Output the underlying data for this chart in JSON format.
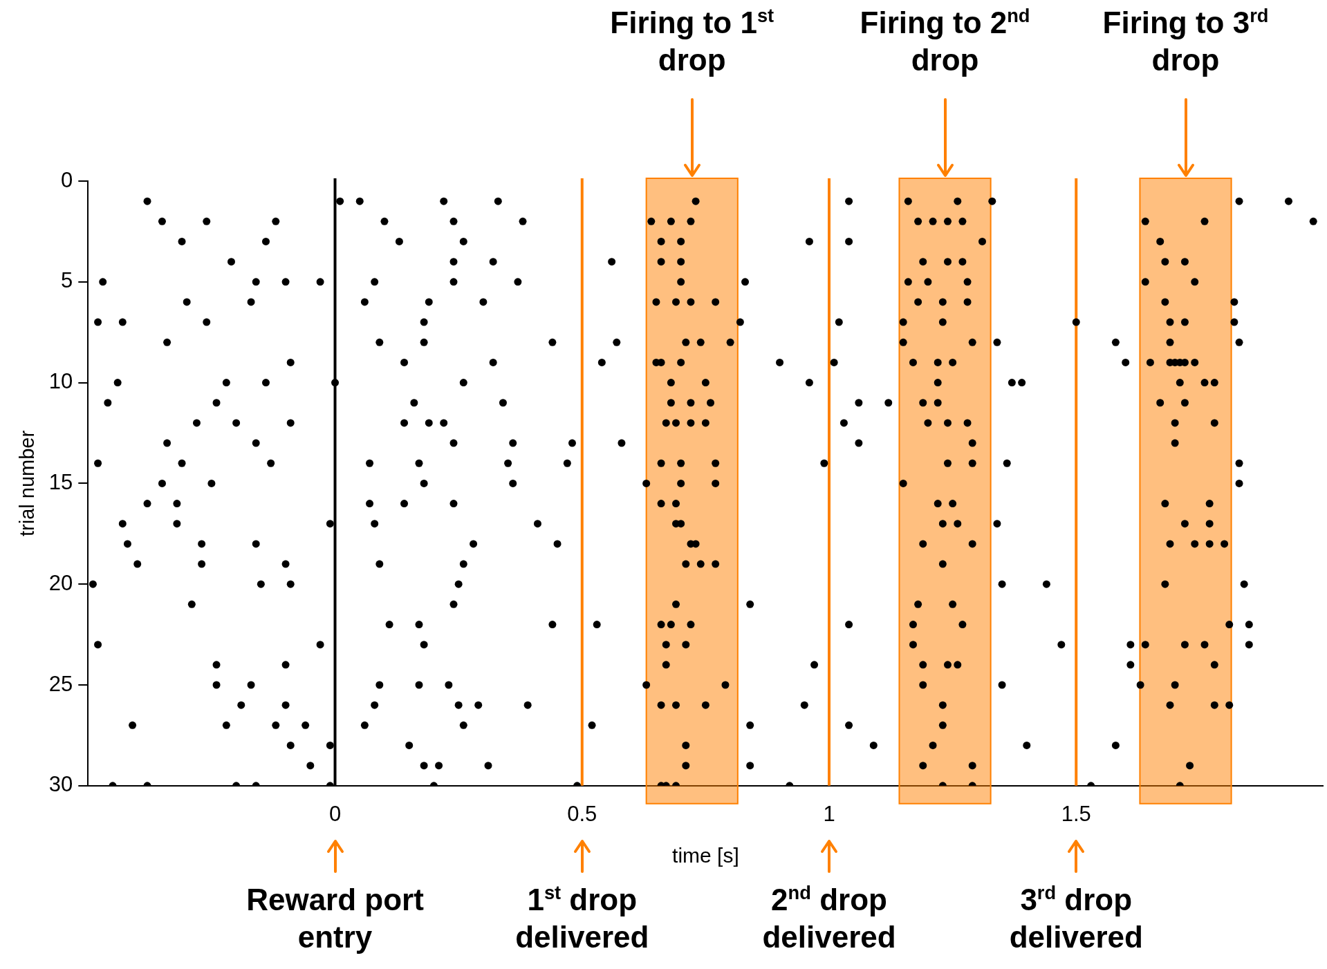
{
  "chart_data": {
    "type": "scatter",
    "xlabel": "time [s]",
    "ylabel": "trial number",
    "marker": "circle",
    "xlim": [
      -0.5,
      2
    ],
    "xticks": [
      0,
      0.5,
      1,
      1.5
    ],
    "ylim": [
      30,
      0
    ],
    "yticks": [
      0,
      5,
      10,
      15,
      20,
      25,
      30
    ],
    "ref_lines": [
      {
        "axis": "x",
        "value": 0,
        "color": "#000000"
      },
      {
        "axis": "x",
        "value": 0.5,
        "color": "#ff8000"
      },
      {
        "axis": "x",
        "value": 1,
        "color": "#ff8000"
      },
      {
        "axis": "x",
        "value": 1.5,
        "color": "#ff8000"
      }
    ],
    "bands": [
      {
        "axis": "x",
        "from": 0.63,
        "to": 0.815,
        "color": "#ff8000"
      },
      {
        "axis": "x",
        "from": 1.142,
        "to": 1.327,
        "color": "#ff8000"
      },
      {
        "axis": "x",
        "from": 1.629,
        "to": 1.814,
        "color": "#ff8000"
      }
    ],
    "annotations": [
      "Firing to 1$^{st}$ drop",
      "Firing to 2$^{nd}$ drop",
      "Firing to 3$^{rd}$ drop",
      "Reward port entry",
      "1$^{st}$ drop delivered",
      "2$^{nd}$ drop delivered",
      "3$^{rd}$ drop delivered"
    ],
    "series": [
      {
        "color": "#000000",
        "x": [
          -0.38,
          0.01,
          0.05,
          0.22,
          0.33,
          0.73,
          1.04,
          1.16,
          1.26,
          1.33,
          1.83,
          1.93
        ],
        "values": [
          1,
          1,
          1,
          1,
          1,
          1,
          1,
          1,
          1,
          1,
          1,
          1
        ]
      },
      {
        "color": "#000000",
        "x": [
          -0.35,
          -0.26,
          -0.12,
          0.1,
          0.24,
          0.38,
          0.64,
          0.68,
          0.72,
          1.18,
          1.21,
          1.24,
          1.27,
          1.64,
          1.76,
          1.98
        ],
        "values": [
          2,
          2,
          2,
          2,
          2,
          2,
          2,
          2,
          2,
          2,
          2,
          2,
          2,
          2,
          2,
          2
        ]
      },
      {
        "color": "#000000",
        "x": [
          -0.31,
          -0.14,
          0.13,
          0.26,
          0.66,
          0.7,
          0.96,
          1.04,
          1.31,
          1.67
        ],
        "values": [
          3,
          3,
          3,
          3,
          3,
          3,
          3,
          3,
          3,
          3
        ]
      },
      {
        "color": "#000000",
        "x": [
          -0.21,
          0.24,
          0.32,
          0.56,
          0.66,
          0.7,
          1.19,
          1.24,
          1.27,
          1.68,
          1.72
        ],
        "values": [
          4,
          4,
          4,
          4,
          4,
          4,
          4,
          4,
          4,
          4,
          4
        ]
      },
      {
        "color": "#000000",
        "x": [
          -0.47,
          -0.16,
          -0.1,
          -0.03,
          0.08,
          0.24,
          0.37,
          0.7,
          0.83,
          1.16,
          1.2,
          1.28,
          1.64,
          1.74
        ],
        "values": [
          5,
          5,
          5,
          5,
          5,
          5,
          5,
          5,
          5,
          5,
          5,
          5,
          5,
          5
        ]
      },
      {
        "color": "#000000",
        "x": [
          -0.3,
          -0.17,
          0.06,
          0.19,
          0.3,
          0.65,
          0.69,
          0.72,
          0.77,
          1.18,
          1.23,
          1.28,
          1.68,
          1.82
        ],
        "values": [
          6,
          6,
          6,
          6,
          6,
          6,
          6,
          6,
          6,
          6,
          6,
          6,
          6,
          6
        ]
      },
      {
        "color": "#000000",
        "x": [
          -0.48,
          -0.43,
          -0.26,
          0.18,
          0.82,
          1.02,
          1.15,
          1.23,
          1.5,
          1.69,
          1.72,
          1.82
        ],
        "values": [
          7,
          7,
          7,
          7,
          7,
          7,
          7,
          7,
          7,
          7,
          7,
          7
        ]
      },
      {
        "color": "#000000",
        "x": [
          -0.34,
          0.09,
          0.18,
          0.44,
          0.57,
          0.71,
          0.74,
          0.8,
          1.15,
          1.29,
          1.34,
          1.58,
          1.69,
          1.83
        ],
        "values": [
          8,
          8,
          8,
          8,
          8,
          8,
          8,
          8,
          8,
          8,
          8,
          8,
          8,
          8
        ]
      },
      {
        "color": "#000000",
        "x": [
          -0.09,
          0.14,
          0.32,
          0.54,
          0.65,
          0.66,
          0.7,
          0.9,
          1.01,
          1.17,
          1.22,
          1.25,
          1.6,
          1.65,
          1.69,
          1.7,
          1.71,
          1.72,
          1.74
        ],
        "values": [
          9,
          9,
          9,
          9,
          9,
          9,
          9,
          9,
          9,
          9,
          9,
          9,
          9,
          9,
          9,
          9,
          9,
          9,
          9
        ]
      },
      {
        "color": "#000000",
        "x": [
          -0.44,
          -0.22,
          -0.14,
          0.0,
          0.26,
          0.68,
          0.75,
          0.96,
          1.22,
          1.37,
          1.39,
          1.71,
          1.76,
          1.78
        ],
        "values": [
          10,
          10,
          10,
          10,
          10,
          10,
          10,
          10,
          10,
          10,
          10,
          10,
          10,
          10
        ]
      },
      {
        "color": "#000000",
        "x": [
          -0.46,
          -0.24,
          0.16,
          0.34,
          0.68,
          0.72,
          0.76,
          1.06,
          1.12,
          1.19,
          1.22,
          1.67,
          1.72
        ],
        "values": [
          11,
          11,
          11,
          11,
          11,
          11,
          11,
          11,
          11,
          11,
          11,
          11,
          11
        ]
      },
      {
        "color": "#000000",
        "x": [
          -0.28,
          -0.2,
          -0.09,
          0.14,
          0.19,
          0.22,
          0.67,
          0.69,
          0.72,
          0.75,
          1.03,
          1.2,
          1.24,
          1.28,
          1.7,
          1.78
        ],
        "values": [
          12,
          12,
          12,
          12,
          12,
          12,
          12,
          12,
          12,
          12,
          12,
          12,
          12,
          12,
          12,
          12
        ]
      },
      {
        "color": "#000000",
        "x": [
          -0.34,
          -0.16,
          0.24,
          0.36,
          0.48,
          0.58,
          1.06,
          1.29,
          1.7
        ],
        "values": [
          13,
          13,
          13,
          13,
          13,
          13,
          13,
          13,
          13
        ]
      },
      {
        "color": "#000000",
        "x": [
          -0.48,
          -0.31,
          -0.13,
          0.07,
          0.17,
          0.35,
          0.47,
          0.66,
          0.7,
          0.77,
          0.99,
          1.24,
          1.29,
          1.36,
          1.83
        ],
        "values": [
          14,
          14,
          14,
          14,
          14,
          14,
          14,
          14,
          14,
          14,
          14,
          14,
          14,
          14,
          14
        ]
      },
      {
        "color": "#000000",
        "x": [
          -0.35,
          -0.25,
          0.18,
          0.36,
          0.63,
          0.7,
          0.77,
          1.15,
          1.83
        ],
        "values": [
          15,
          15,
          15,
          15,
          15,
          15,
          15,
          15,
          15
        ]
      },
      {
        "color": "#000000",
        "x": [
          -0.38,
          -0.32,
          0.07,
          0.14,
          0.24,
          0.66,
          0.69,
          1.22,
          1.25,
          1.68,
          1.77
        ],
        "values": [
          16,
          16,
          16,
          16,
          16,
          16,
          16,
          16,
          16,
          16,
          16
        ]
      },
      {
        "color": "#000000",
        "x": [
          -0.43,
          -0.32,
          -0.01,
          0.08,
          0.41,
          0.69,
          0.7,
          1.23,
          1.26,
          1.34,
          1.72,
          1.77
        ],
        "values": [
          17,
          17,
          17,
          17,
          17,
          17,
          17,
          17,
          17,
          17,
          17,
          17
        ]
      },
      {
        "color": "#000000",
        "x": [
          -0.42,
          -0.27,
          -0.16,
          0.28,
          0.45,
          0.72,
          0.73,
          1.19,
          1.29,
          1.69,
          1.74,
          1.77,
          1.8
        ],
        "values": [
          18,
          18,
          18,
          18,
          18,
          18,
          18,
          18,
          18,
          18,
          18,
          18,
          18
        ]
      },
      {
        "color": "#000000",
        "x": [
          -0.4,
          -0.27,
          -0.1,
          0.09,
          0.26,
          0.71,
          0.74,
          0.77,
          1.23
        ],
        "values": [
          19,
          19,
          19,
          19,
          19,
          19,
          19,
          19,
          19
        ]
      },
      {
        "color": "#000000",
        "x": [
          -0.49,
          -0.15,
          -0.09,
          0.25,
          1.35,
          1.44,
          1.68,
          1.84
        ],
        "values": [
          20,
          20,
          20,
          20,
          20,
          20,
          20,
          20
        ]
      },
      {
        "color": "#000000",
        "x": [
          -0.29,
          0.24,
          0.69,
          0.84,
          1.18,
          1.25
        ],
        "values": [
          21,
          21,
          21,
          21,
          21,
          21
        ]
      },
      {
        "color": "#000000",
        "x": [
          0.11,
          0.17,
          0.44,
          0.53,
          0.66,
          0.68,
          0.72,
          1.04,
          1.17,
          1.27,
          1.81,
          1.85
        ],
        "values": [
          22,
          22,
          22,
          22,
          22,
          22,
          22,
          22,
          22,
          22,
          22,
          22
        ]
      },
      {
        "color": "#000000",
        "x": [
          -0.48,
          -0.03,
          0.18,
          0.67,
          0.71,
          1.17,
          1.47,
          1.61,
          1.64,
          1.72,
          1.76,
          1.85
        ],
        "values": [
          23,
          23,
          23,
          23,
          23,
          23,
          23,
          23,
          23,
          23,
          23,
          23
        ]
      },
      {
        "color": "#000000",
        "x": [
          -0.24,
          -0.1,
          0.67,
          0.97,
          1.19,
          1.24,
          1.26,
          1.61,
          1.78
        ],
        "values": [
          24,
          24,
          24,
          24,
          24,
          24,
          24,
          24,
          24
        ]
      },
      {
        "color": "#000000",
        "x": [
          -0.24,
          -0.17,
          0.09,
          0.17,
          0.23,
          0.63,
          0.79,
          1.19,
          1.35,
          1.63,
          1.7
        ],
        "values": [
          25,
          25,
          25,
          25,
          25,
          25,
          25,
          25,
          25,
          25,
          25
        ]
      },
      {
        "color": "#000000",
        "x": [
          -0.19,
          -0.1,
          0.08,
          0.25,
          0.29,
          0.39,
          0.66,
          0.69,
          0.75,
          0.95,
          1.23,
          1.69,
          1.78,
          1.81
        ],
        "values": [
          26,
          26,
          26,
          26,
          26,
          26,
          26,
          26,
          26,
          26,
          26,
          26,
          26,
          26
        ]
      },
      {
        "color": "#000000",
        "x": [
          -0.41,
          -0.22,
          -0.12,
          -0.06,
          0.06,
          0.26,
          0.52,
          0.84,
          1.04,
          1.23
        ],
        "values": [
          27,
          27,
          27,
          27,
          27,
          27,
          27,
          27,
          27,
          27
        ]
      },
      {
        "color": "#000000",
        "x": [
          -0.09,
          -0.01,
          0.15,
          0.71,
          1.09,
          1.21,
          1.4,
          1.58
        ],
        "values": [
          28,
          28,
          28,
          28,
          28,
          28,
          28,
          28
        ]
      },
      {
        "color": "#000000",
        "x": [
          -0.05,
          0.18,
          0.21,
          0.31,
          0.71,
          0.84,
          1.19,
          1.29,
          1.73
        ],
        "values": [
          29,
          29,
          29,
          29,
          29,
          29,
          29,
          29,
          29
        ]
      },
      {
        "color": "#000000",
        "x": [
          -0.45,
          -0.38,
          -0.2,
          -0.16,
          -0.01,
          0.2,
          0.49,
          0.66,
          0.67,
          0.69,
          0.92,
          1.23,
          1.29,
          1.53,
          1.71
        ],
        "values": [
          30,
          30,
          30,
          30,
          30,
          30,
          30,
          30,
          30,
          30,
          30,
          30,
          30,
          30,
          30
        ]
      }
    ]
  }
}
